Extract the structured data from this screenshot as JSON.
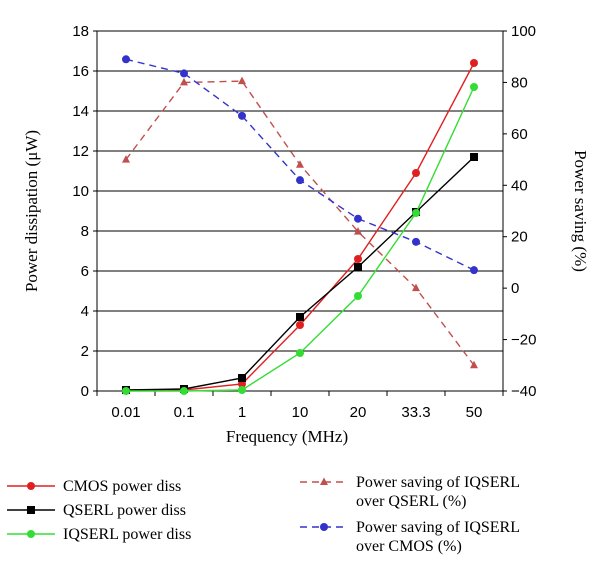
{
  "chart_data": {
    "type": "line",
    "categories": [
      "0.01",
      "0.1",
      "1",
      "10",
      "20",
      "33.3",
      "50"
    ],
    "xlabel": "Frequency (MHz)",
    "ylabel_left": "Power dissipation (μW)",
    "ylabel_right": "Power saving (%)",
    "ylim_left": [
      0,
      18
    ],
    "yticks_left": [
      "0",
      "2",
      "4",
      "6",
      "8",
      "10",
      "12",
      "14",
      "16",
      "18"
    ],
    "ylim_right": [
      -40,
      100
    ],
    "yticks_right": [
      "−40",
      "−20",
      "0",
      "20",
      "40",
      "60",
      "80",
      "100"
    ],
    "grid": true,
    "legend_position": "bottom",
    "series": [
      {
        "name": "CMOS power diss",
        "axis": "left",
        "color": "#e02020",
        "marker": "circle",
        "dash": false,
        "values": [
          0.05,
          0.05,
          0.35,
          3.3,
          6.6,
          10.9,
          16.4
        ]
      },
      {
        "name": "QSERL power diss",
        "axis": "left",
        "color": "#000000",
        "marker": "square",
        "dash": false,
        "values": [
          0.05,
          0.1,
          0.65,
          3.7,
          6.2,
          8.95,
          11.7
        ]
      },
      {
        "name": "IQSERL power diss",
        "axis": "left",
        "color": "#33dd33",
        "marker": "circle",
        "dash": false,
        "values": [
          0.0,
          0.0,
          0.05,
          1.9,
          4.75,
          8.9,
          15.2
        ]
      },
      {
        "name": "Power saving of IQSERL\nover QSERL (%)",
        "axis": "right",
        "color": "#c0504d",
        "marker": "triangle",
        "dash": true,
        "values": [
          50,
          80,
          80.5,
          48,
          22,
          0,
          -30
        ]
      },
      {
        "name": "Power saving of IQSERL\nover CMOS (%)",
        "axis": "right",
        "color": "#3333cc",
        "marker": "circle",
        "dash": true,
        "values": [
          89,
          83.5,
          67,
          42,
          27,
          18,
          7
        ]
      }
    ]
  }
}
